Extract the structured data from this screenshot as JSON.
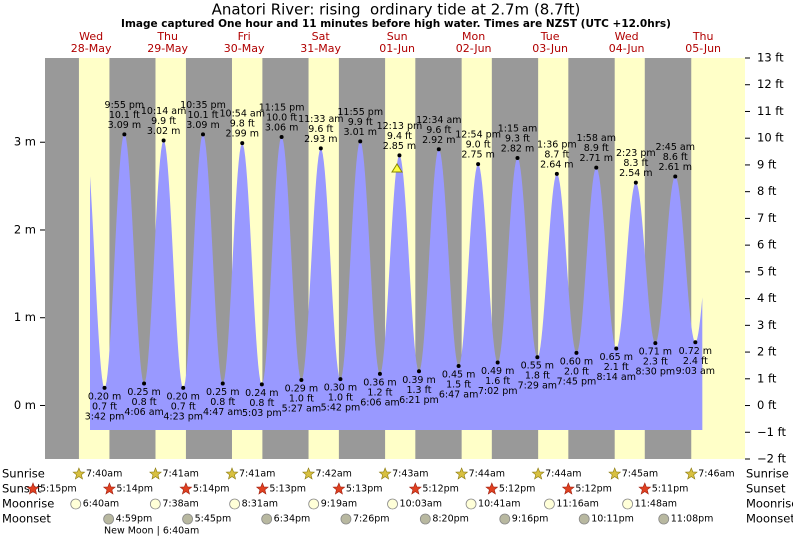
{
  "chart_data": {
    "type": "tide",
    "title": "Anatori River: rising  ordinary tide at 2.7m (8.7ft)",
    "subtitle": "Image captured One hour and 11 minutes before high water. Times are NZST (UTC +12.0hrs)",
    "days": [
      {
        "weekday": "Wed",
        "date": "28-May"
      },
      {
        "weekday": "Thu",
        "date": "29-May"
      },
      {
        "weekday": "Fri",
        "date": "30-May"
      },
      {
        "weekday": "Sat",
        "date": "31-May"
      },
      {
        "weekday": "Sun",
        "date": "01-Jun"
      },
      {
        "weekday": "Mon",
        "date": "02-Jun"
      },
      {
        "weekday": "Tue",
        "date": "03-Jun"
      },
      {
        "weekday": "Wed",
        "date": "04-Jun"
      },
      {
        "weekday": "Thu",
        "date": "05-Jun"
      }
    ],
    "ylim": [
      -0.61,
      3.96
    ],
    "yticks": [
      {
        "value": 0,
        "label": "0 m"
      },
      {
        "value": 1,
        "label": "1 m"
      },
      {
        "value": 2,
        "label": "2 m"
      },
      {
        "value": 3,
        "label": "3 m"
      }
    ],
    "y2lim": [
      -2,
      13
    ],
    "y2ticks": [
      {
        "value": -2,
        "label": "−2 ft"
      },
      {
        "value": -1,
        "label": "−1 ft"
      },
      {
        "value": 0,
        "label": "0 ft"
      },
      {
        "value": 1,
        "label": "1 ft"
      },
      {
        "value": 2,
        "label": "2 ft"
      },
      {
        "value": 3,
        "label": "3 ft"
      },
      {
        "value": 4,
        "label": "4 ft"
      },
      {
        "value": 5,
        "label": "5 ft"
      },
      {
        "value": 6,
        "label": "6 ft"
      },
      {
        "value": 7,
        "label": "7 ft"
      },
      {
        "value": 8,
        "label": "8 ft"
      },
      {
        "value": 9,
        "label": "9 ft"
      },
      {
        "value": 10,
        "label": "10 ft"
      },
      {
        "value": 11,
        "label": "11 ft"
      },
      {
        "value": 12,
        "label": "12 ft"
      },
      {
        "value": 13,
        "label": "13 ft"
      }
    ],
    "color": "#9999ff",
    "tide": {
      "times": [
        "3:42 pm",
        "9:55 pm",
        "4:06 am",
        "10:14 am",
        "4:23 pm",
        "10:35 pm",
        "4:47 am",
        "10:54 am",
        "5:03 pm",
        "11:15 pm",
        "5:27 am",
        "11:33 am",
        "5:42 pm",
        "11:55 pm",
        "6:06 am",
        "12:13 pm",
        "6:21 pm",
        "12:34 am",
        "6:47 am",
        "12:54 pm",
        "7:02 pm",
        "1:15 am",
        "7:29 am",
        "1:36 pm",
        "7:45 pm",
        "1:58 am",
        "8:14 am",
        "2:23 pm",
        "8:30 pm",
        "2:45 am",
        "9:03 am"
      ],
      "values": [
        0.2,
        3.09,
        0.25,
        3.02,
        0.2,
        3.09,
        0.25,
        2.99,
        0.24,
        3.06,
        0.29,
        2.93,
        0.3,
        3.01,
        0.36,
        2.85,
        0.39,
        2.92,
        0.45,
        2.75,
        0.49,
        2.82,
        0.55,
        2.64,
        0.6,
        2.71,
        0.65,
        2.54,
        0.71,
        2.61,
        0.72
      ],
      "value_labels": [
        "0.20 m",
        "3.09 m",
        "0.25 m",
        "3.02 m",
        "0.20 m",
        "3.09 m",
        "0.25 m",
        "2.99 m",
        "0.24 m",
        "3.06 m",
        "0.29 m",
        "2.93 m",
        "0.30 m",
        "3.01 m",
        "0.36 m",
        "2.85 m",
        "0.39 m",
        "2.92 m",
        "0.45 m",
        "2.75 m",
        "0.49 m",
        "2.82 m",
        "0.55 m",
        "2.64 m",
        "0.60 m",
        "2.71 m",
        "0.65 m",
        "2.54 m",
        "0.71 m",
        "2.61 m",
        "0.72 m"
      ],
      "ft_labels": [
        "0.7 ft",
        "10.1 ft",
        "0.8 ft",
        "9.9 ft",
        "0.7 ft",
        "10.1 ft",
        "0.8 ft",
        "9.8 ft",
        "0.8 ft",
        "10.0 ft",
        "1.0 ft",
        "9.6 ft",
        "1.0 ft",
        "9.9 ft",
        "1.2 ft",
        "9.4 ft",
        "1.3 ft",
        "9.6 ft",
        "1.5 ft",
        "9.0 ft",
        "1.6 ft",
        "9.3 ft",
        "1.8 ft",
        "8.7 ft",
        "2.0 ft",
        "8.9 ft",
        "2.1 ft",
        "8.3 ft",
        "2.3 ft",
        "8.6 ft",
        "2.4 ft"
      ]
    },
    "rows": [
      {
        "label": "Sunrise",
        "times": [
          "7:40am",
          "7:41am",
          "7:41am",
          "7:42am",
          "7:43am",
          "7:44am",
          "7:44am",
          "7:45am",
          "7:46am"
        ]
      },
      {
        "label": "Sunset",
        "times": [
          "5:15pm",
          "5:14pm",
          "5:14pm",
          "5:13pm",
          "5:13pm",
          "5:12pm",
          "5:12pm",
          "5:12pm",
          "5:11pm"
        ]
      },
      {
        "label": "Moonrise",
        "times": [
          "6:40am",
          "7:38am",
          "8:31am",
          "9:19am",
          "10:03am",
          "10:41am",
          "11:16am",
          "11:48am"
        ]
      },
      {
        "label": "Moonset",
        "times": [
          "4:59pm",
          "5:45pm",
          "6:34pm",
          "7:26pm",
          "8:20pm",
          "9:16pm",
          "10:11pm",
          "11:08pm"
        ]
      }
    ],
    "moon_phase": "New Moon | 6:40am"
  }
}
